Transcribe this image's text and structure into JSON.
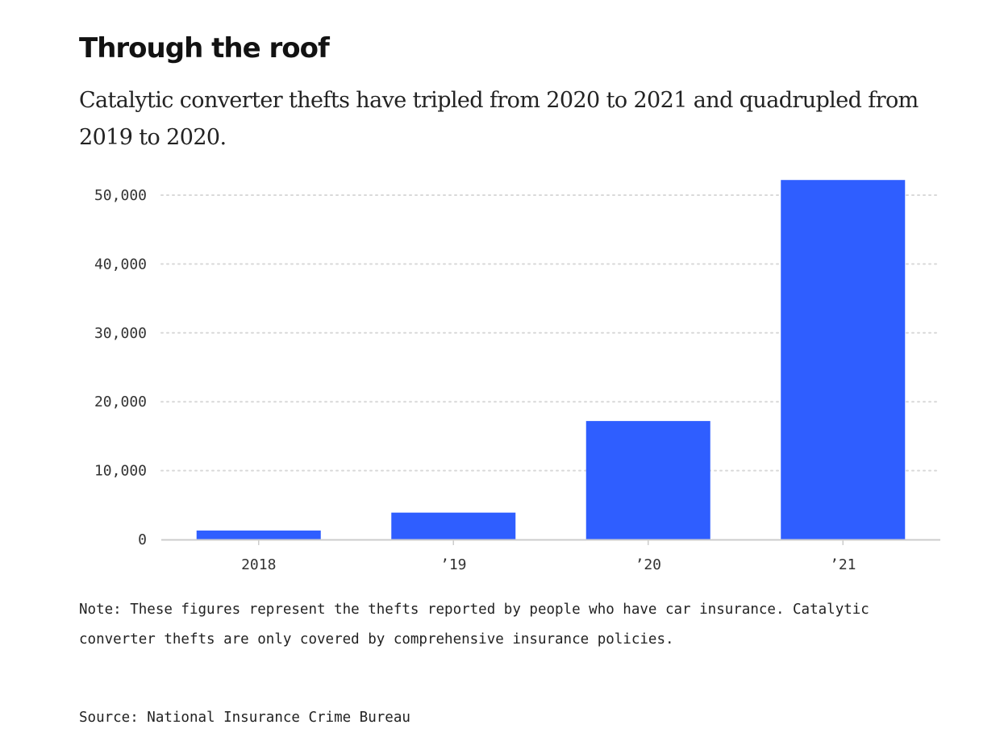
{
  "title": "Through the roof",
  "subtitle": "Catalytic converter thefts have tripled from 2020 to 2021 and quadrupled from 2019 to 2020.",
  "note": "Note: These figures represent the thefts reported by people who have car insurance. Catalytic converter thefts are only covered by comprehensive insurance policies.",
  "source": "Source: National Insurance Crime Bureau",
  "colors": {
    "bar": "#2f5eff",
    "gridline": "#d9d9d9",
    "axis": "#cccccc"
  },
  "chart_data": {
    "type": "bar",
    "categories": [
      "2018",
      "’19",
      "’20",
      "’21"
    ],
    "values": [
      1300,
      3900,
      17200,
      52200
    ],
    "ylim": [
      0,
      50000
    ],
    "yticks": [
      0,
      10000,
      20000,
      30000,
      40000,
      50000
    ],
    "ytick_labels": [
      "0",
      "10,000",
      "20,000",
      "30,000",
      "40,000",
      "50,000"
    ],
    "grid": true,
    "xlabel": "",
    "ylabel": ""
  }
}
